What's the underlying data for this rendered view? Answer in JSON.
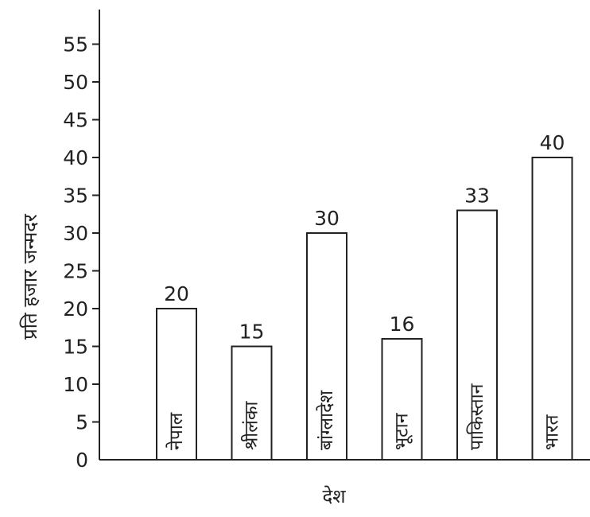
{
  "chart_data": {
    "type": "bar",
    "categories": [
      "नेपाल",
      "श्रीलंका",
      "बांग्लादेश",
      "भूटान",
      "पाकिस्तान",
      "भारत"
    ],
    "values": [
      20,
      15,
      30,
      16,
      33,
      40
    ],
    "xlabel": "देश",
    "ylabel": "प्रति हजार जन्मदर",
    "ylim": [
      0,
      55
    ],
    "yticks": [
      0,
      5,
      10,
      15,
      20,
      25,
      30,
      35,
      40,
      45,
      50,
      55
    ],
    "data_labels": true,
    "category_labels_position": "inside-bar-vertical",
    "grid": false,
    "colors": {
      "bar_fill": "#ffffff",
      "bar_stroke": "#222222",
      "axis": "#222222"
    }
  }
}
